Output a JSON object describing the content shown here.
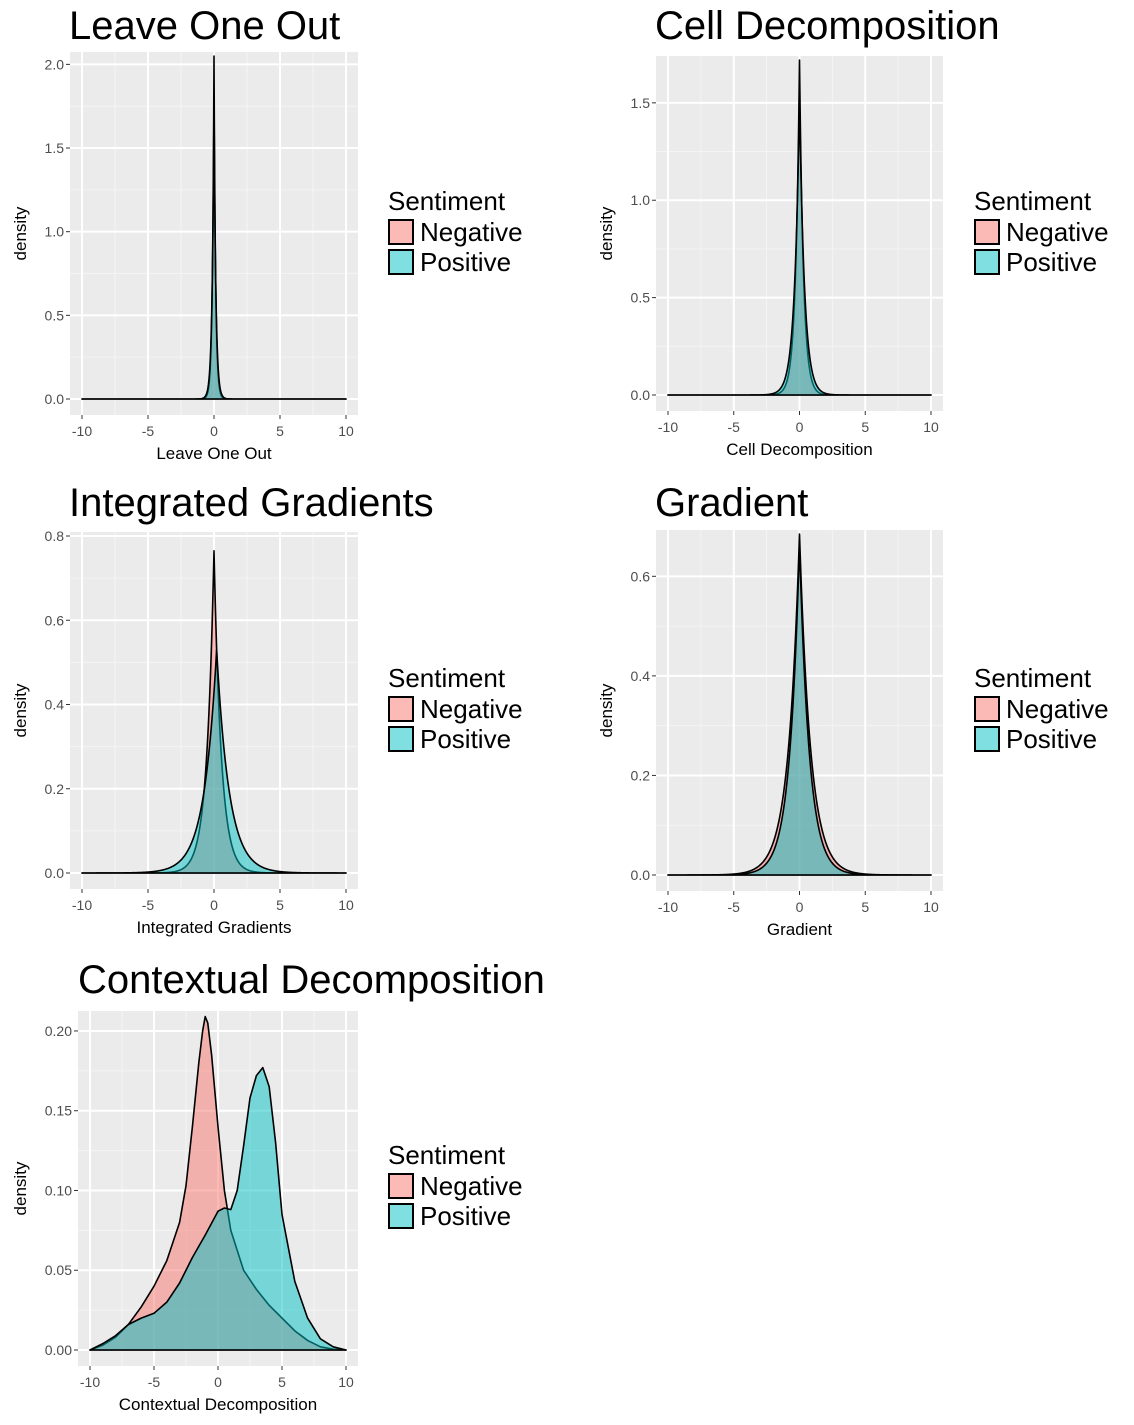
{
  "legend": {
    "title": "Sentiment",
    "entries": [
      {
        "label": "Negative",
        "color": "#F8766D"
      },
      {
        "label": "Positive",
        "color": "#00BFC4"
      }
    ]
  },
  "chart_data": [
    {
      "type": "area",
      "title": "Leave One Out",
      "xlabel": "Leave One Out",
      "ylabel": "density",
      "xlim": [
        -10,
        10
      ],
      "ylim": [
        0,
        2.05
      ],
      "xticks": [
        -10,
        -5,
        0,
        5,
        10
      ],
      "yticks": [
        0.0,
        0.5,
        1.0,
        1.5,
        2.0
      ],
      "ytick_labels": [
        "0.0",
        "0.5",
        "1.0",
        "1.5",
        "2.0"
      ],
      "series": [
        {
          "name": "Negative",
          "peak_x": 0.0,
          "peak_y": 2.05,
          "scale": 0.12,
          "shape": "laplace"
        },
        {
          "name": "Positive",
          "peak_x": 0.0,
          "peak_y": 1.78,
          "scale": 0.14,
          "shape": "laplace"
        }
      ]
    },
    {
      "type": "area",
      "title": "Cell Decomposition",
      "xlabel": "Cell Decomposition",
      "ylabel": "density",
      "xlim": [
        -10,
        10
      ],
      "ylim": [
        0,
        1.72
      ],
      "xticks": [
        -10,
        -5,
        0,
        5,
        10
      ],
      "yticks": [
        0.0,
        0.5,
        1.0,
        1.5
      ],
      "ytick_labels": [
        "0.0",
        "0.5",
        "1.0",
        "1.5"
      ],
      "series": [
        {
          "name": "Negative",
          "peak_x": 0.0,
          "peak_y": 1.72,
          "scale": 0.3,
          "shape": "laplace"
        },
        {
          "name": "Positive",
          "peak_x": 0.0,
          "peak_y": 1.52,
          "scale": 0.38,
          "shape": "laplace"
        }
      ]
    },
    {
      "type": "area",
      "title": "Integrated Gradients",
      "xlabel": "Integrated Gradients",
      "ylabel": "density",
      "xlim": [
        -10,
        10
      ],
      "ylim": [
        0,
        0.8
      ],
      "xticks": [
        -10,
        -5,
        0,
        5,
        10
      ],
      "yticks": [
        0.0,
        0.2,
        0.4,
        0.6,
        0.8
      ],
      "ytick_labels": [
        "0.0",
        "0.2",
        "0.4",
        "0.6",
        "0.8"
      ],
      "series": [
        {
          "name": "Negative",
          "peak_x": 0.0,
          "peak_y": 0.765,
          "scale": 0.55,
          "shape": "laplace"
        },
        {
          "name": "Positive",
          "peak_x": 0.2,
          "peak_y": 0.53,
          "scale": 0.95,
          "shape": "laplace"
        }
      ]
    },
    {
      "type": "area",
      "title": "Gradient",
      "xlabel": "Gradient",
      "ylabel": "density",
      "xlim": [
        -10,
        10
      ],
      "ylim": [
        0,
        0.685
      ],
      "xticks": [
        -10,
        -5,
        0,
        5,
        10
      ],
      "yticks": [
        0.0,
        0.2,
        0.4,
        0.6
      ],
      "ytick_labels": [
        "0.0",
        "0.2",
        "0.4",
        "0.6"
      ],
      "series": [
        {
          "name": "Negative",
          "peak_x": 0.0,
          "peak_y": 0.685,
          "scale": 0.85,
          "shape": "laplace"
        },
        {
          "name": "Positive",
          "peak_x": 0.0,
          "peak_y": 0.665,
          "scale": 0.75,
          "shape": "laplace"
        }
      ]
    },
    {
      "type": "area",
      "title": "Contextual Decomposition",
      "xlabel": "Contextual Decomposition",
      "ylabel": "density",
      "xlim": [
        -10,
        10
      ],
      "ylim": [
        0,
        0.21
      ],
      "xticks": [
        -10,
        -5,
        0,
        5,
        10
      ],
      "yticks": [
        0.0,
        0.05,
        0.1,
        0.15,
        0.2
      ],
      "ytick_labels": [
        "0.00",
        "0.05",
        "0.10",
        "0.15",
        "0.20"
      ],
      "series": [
        {
          "name": "Negative",
          "shape": "points",
          "x": [
            -10,
            -9,
            -8,
            -7,
            -6,
            -5,
            -4,
            -3,
            -2.5,
            -2,
            -1.5,
            -1.2,
            -1,
            -0.8,
            -0.5,
            0,
            0.5,
            1,
            2,
            3,
            4,
            5,
            6,
            7,
            8,
            9,
            10
          ],
          "y": [
            0.0,
            0.003,
            0.008,
            0.016,
            0.027,
            0.04,
            0.056,
            0.08,
            0.103,
            0.14,
            0.18,
            0.2,
            0.209,
            0.205,
            0.185,
            0.14,
            0.1,
            0.075,
            0.05,
            0.038,
            0.028,
            0.02,
            0.012,
            0.006,
            0.002,
            0.0005,
            0.0
          ]
        },
        {
          "name": "Positive",
          "shape": "points",
          "x": [
            -10,
            -9,
            -8,
            -7,
            -6,
            -5,
            -4,
            -3,
            -2,
            -1,
            0,
            0.5,
            1,
            1.5,
            2,
            2.5,
            3,
            3.5,
            4,
            4.5,
            5,
            6,
            7,
            8,
            9,
            10
          ],
          "y": [
            0.0,
            0.004,
            0.009,
            0.016,
            0.02,
            0.023,
            0.03,
            0.042,
            0.058,
            0.072,
            0.087,
            0.089,
            0.088,
            0.1,
            0.128,
            0.158,
            0.172,
            0.177,
            0.165,
            0.13,
            0.085,
            0.043,
            0.02,
            0.007,
            0.002,
            0.0
          ]
        }
      ]
    }
  ]
}
